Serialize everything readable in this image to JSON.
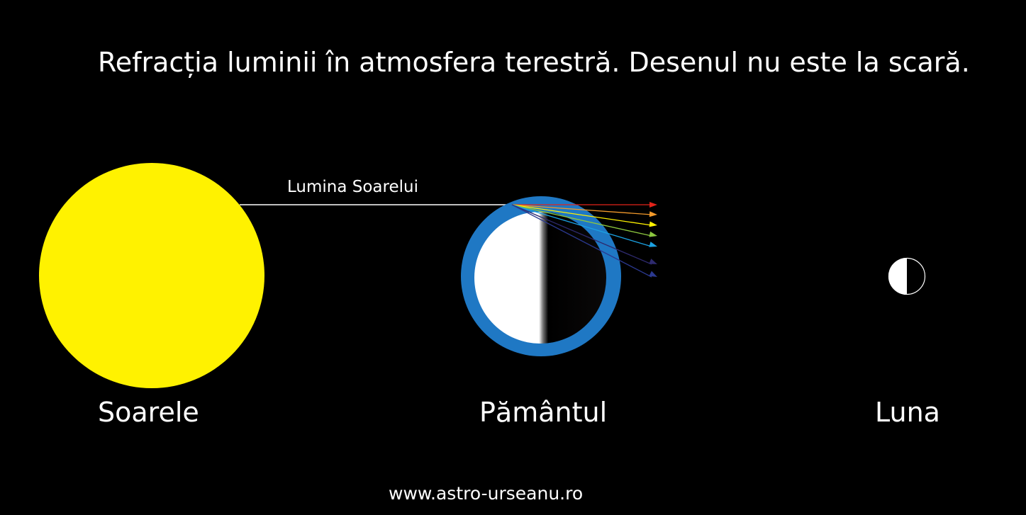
{
  "title": "Refracția luminii în atmosfera terestră. Desenul nu este la scară.",
  "labels": {
    "sun": "Soarele",
    "earth": "Pământul",
    "moon": "Luna",
    "sunlight": "Lumina Soarelui"
  },
  "footer": "www.astro-urseanu.ro",
  "colors": {
    "sun": "#fff200",
    "atmosphere": "#1f78c4",
    "rays": [
      "#e2231a",
      "#f39a2b",
      "#fff200",
      "#8cc63f",
      "#1ba1e2",
      "#2e2a6e",
      "#2b3990"
    ]
  }
}
